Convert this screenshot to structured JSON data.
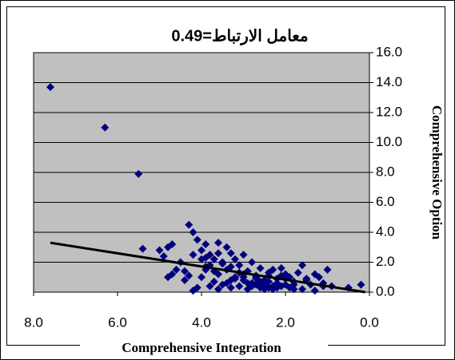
{
  "chart_data": {
    "type": "scatter",
    "title": "معامل الارتباط=0.49",
    "x_label": "Comprehensive Integration",
    "y_label": "Comprehensive Option",
    "x": [
      7.6,
      6.3,
      5.5,
      5.4,
      5.0,
      4.8,
      4.7,
      4.9,
      4.6,
      4.5,
      4.7,
      4.8,
      4.4,
      4.3,
      4.2,
      4.1,
      4.3,
      4.2,
      4.0,
      3.9,
      3.8,
      3.6,
      3.7,
      3.5,
      3.4,
      3.9,
      4.1,
      4.0,
      3.8,
      3.7,
      3.6,
      3.5,
      3.3,
      3.2,
      3.1,
      3.0,
      2.9,
      2.8,
      2.7,
      2.6,
      2.5,
      2.4,
      2.3,
      2.2,
      2.1,
      2.0,
      1.9,
      1.8,
      1.7,
      1.6,
      1.5,
      1.4,
      1.3,
      1.2,
      1.1,
      1.0,
      0.9,
      0.5,
      0.2,
      3.4,
      3.3,
      3.2,
      3.1,
      3.0,
      2.9,
      2.8,
      2.7,
      2.6,
      2.5,
      2.4,
      2.3,
      2.2,
      2.1,
      2.0,
      1.9,
      1.8,
      1.6,
      1.5,
      1.3,
      1.1,
      3.8,
      3.6,
      3.4,
      3.2,
      3.0,
      2.8,
      2.6,
      2.4,
      2.2,
      2.0,
      1.8,
      4.0,
      3.9,
      3.7,
      3.5,
      3.3,
      3.1,
      2.9,
      2.7,
      2.5,
      2.3,
      2.1,
      4.4,
      4.2,
      3.9,
      3.6,
      3.3,
      3.0,
      2.7,
      2.4
    ],
    "values": [
      13.7,
      11.0,
      7.9,
      2.9,
      2.8,
      3.0,
      3.2,
      2.4,
      1.5,
      2.0,
      1.2,
      1.0,
      0.8,
      1.1,
      4.0,
      3.5,
      4.5,
      0.1,
      2.8,
      3.2,
      2.5,
      3.3,
      2.2,
      2.0,
      3.0,
      1.5,
      0.3,
      1.0,
      1.8,
      0.7,
      1.2,
      0.5,
      2.6,
      2.2,
      1.8,
      2.5,
      1.4,
      2.0,
      1.1,
      1.6,
      0.8,
      1.3,
      1.5,
      0.9,
      1.6,
      1.2,
      1.0,
      0.7,
      1.3,
      1.8,
      0.9,
      0.5,
      1.2,
      1.0,
      0.4,
      1.5,
      0.4,
      0.3,
      0.5,
      0.6,
      0.3,
      1.0,
      0.4,
      0.8,
      0.2,
      0.6,
      0.9,
      0.3,
      0.5,
      0.7,
      0.2,
      0.6,
      0.4,
      0.9,
      0.3,
      0.5,
      0.2,
      0.8,
      0.1,
      0.6,
      0.4,
      0.2,
      1.5,
      0.9,
      1.2,
      0.4,
      0.7,
      1.1,
      0.3,
      0.5,
      0.2,
      2.2,
      1.7,
      1.4,
      1.9,
      0.8,
      1.3,
      0.6,
      1.0,
      0.2,
      0.4,
      1.1,
      1.4,
      2.5,
      2.3,
      2.6,
      1.7,
      1.0,
      0.5,
      0.3
    ],
    "color": "#000080",
    "trendline": {
      "x": [
        7.6,
        0.1
      ],
      "y": [
        3.3,
        0.0
      ],
      "color": "#000000"
    },
    "xlim": [
      8,
      0
    ],
    "xticks": [
      {
        "value": 8,
        "label": "8.0"
      },
      {
        "value": 6,
        "label": "6.0"
      },
      {
        "value": 4,
        "label": "4.0"
      },
      {
        "value": 2,
        "label": "2.0"
      },
      {
        "value": 0,
        "label": "0.0"
      }
    ],
    "ylim": [
      0,
      16
    ],
    "yticks": [
      {
        "value": 0,
        "label": "0.0"
      },
      {
        "value": 2,
        "label": "2.0"
      },
      {
        "value": 4,
        "label": "4.0"
      },
      {
        "value": 6,
        "label": "6.0"
      },
      {
        "value": 8,
        "label": "8.0"
      },
      {
        "value": 10,
        "label": "10.0"
      },
      {
        "value": 12,
        "label": "12.0"
      },
      {
        "value": 14,
        "label": "14.0"
      },
      {
        "value": 16,
        "label": "16.0"
      }
    ],
    "grid": true,
    "plot_background": "#c0c0c0"
  }
}
